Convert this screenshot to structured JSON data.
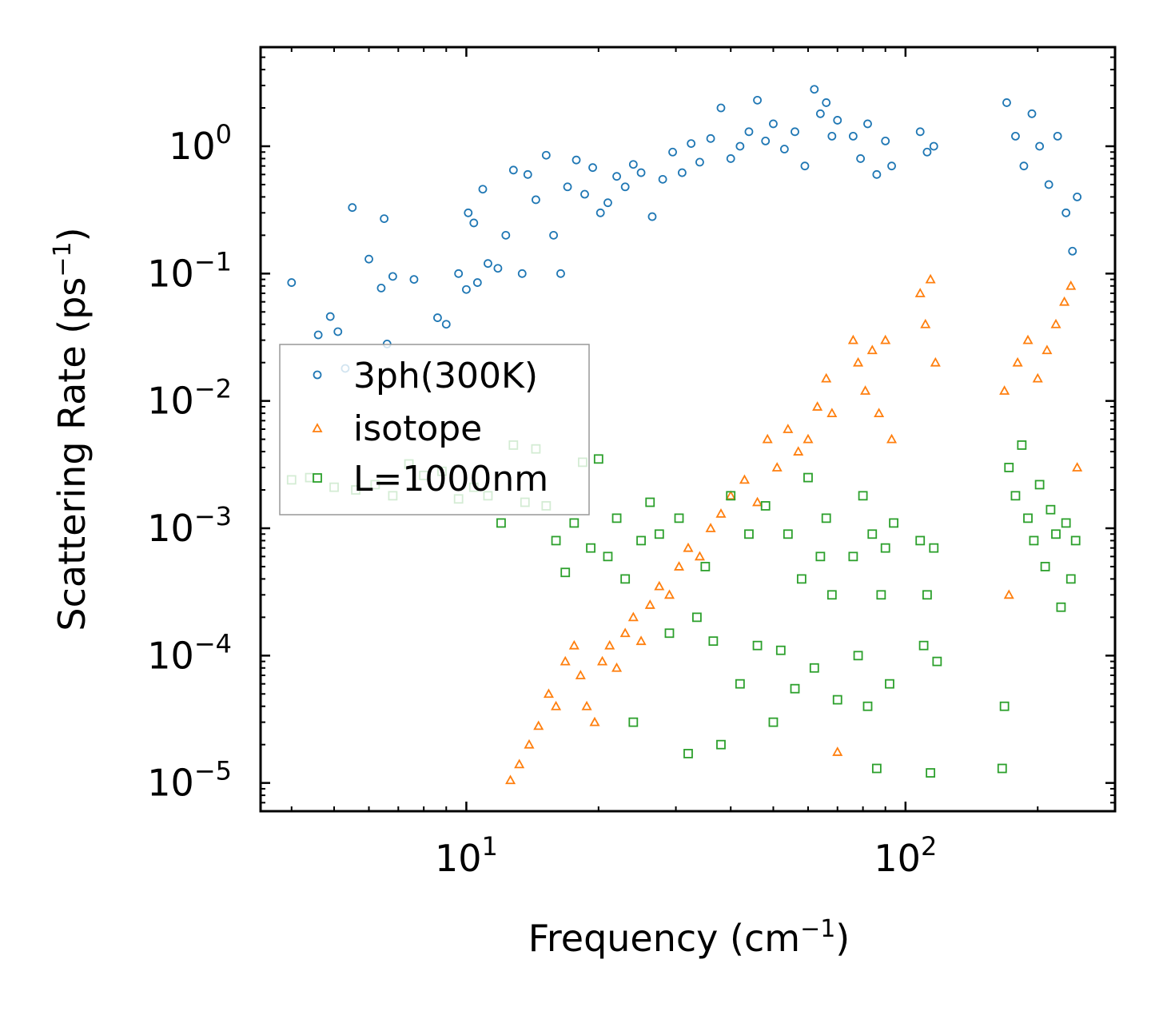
{
  "chart_data": {
    "type": "scatter",
    "xscale": "log",
    "yscale": "log",
    "xlabel": "Frequency (cm",
    "xlabel_sup": "−1",
    "xlabel_tail": ")",
    "ylabel": "Scattering Rate (ps",
    "ylabel_sup": "−1",
    "ylabel_tail": ")",
    "xlim": [
      3.4,
      300
    ],
    "ylim": [
      6e-06,
      6
    ],
    "xticks": [
      {
        "value": 10,
        "base": "10",
        "exp": "1"
      },
      {
        "value": 100,
        "base": "10",
        "exp": "2"
      }
    ],
    "yticks": [
      {
        "value": 1,
        "base": "10",
        "exp": "0"
      },
      {
        "value": 0.1,
        "base": "10",
        "exp": "−1"
      },
      {
        "value": 0.01,
        "base": "10",
        "exp": "−2"
      },
      {
        "value": 0.001,
        "base": "10",
        "exp": "−3"
      },
      {
        "value": 0.0001,
        "base": "10",
        "exp": "−4"
      },
      {
        "value": 1e-05,
        "base": "10",
        "exp": "−5"
      }
    ],
    "legend_position": "center-left",
    "series": [
      {
        "name": "3ph(300K)",
        "color": "#1f77b4",
        "marker": "circle",
        "points": [
          [
            4.0,
            0.085
          ],
          [
            4.6,
            0.033
          ],
          [
            4.9,
            0.046
          ],
          [
            5.1,
            0.035
          ],
          [
            5.3,
            0.018
          ],
          [
            5.5,
            0.33
          ],
          [
            6.0,
            0.13
          ],
          [
            6.4,
            0.077
          ],
          [
            6.5,
            0.27
          ],
          [
            6.6,
            0.028
          ],
          [
            6.8,
            0.095
          ],
          [
            7.6,
            0.09
          ],
          [
            8.6,
            0.045
          ],
          [
            9.0,
            0.04
          ],
          [
            9.6,
            0.1
          ],
          [
            10.0,
            0.075
          ],
          [
            10.1,
            0.3
          ],
          [
            10.4,
            0.25
          ],
          [
            10.6,
            0.085
          ],
          [
            10.9,
            0.46
          ],
          [
            11.2,
            0.12
          ],
          [
            11.8,
            0.11
          ],
          [
            12.3,
            0.2
          ],
          [
            12.8,
            0.65
          ],
          [
            13.4,
            0.1
          ],
          [
            13.8,
            0.6
          ],
          [
            14.4,
            0.38
          ],
          [
            15.2,
            0.85
          ],
          [
            15.8,
            0.2
          ],
          [
            16.4,
            0.1
          ],
          [
            17.0,
            0.48
          ],
          [
            17.8,
            0.78
          ],
          [
            18.6,
            0.42
          ],
          [
            19.4,
            0.68
          ],
          [
            20.2,
            0.3
          ],
          [
            21.0,
            0.36
          ],
          [
            22.0,
            0.58
          ],
          [
            23.0,
            0.48
          ],
          [
            24.0,
            0.72
          ],
          [
            25.0,
            0.62
          ],
          [
            26.5,
            0.28
          ],
          [
            28.0,
            0.55
          ],
          [
            29.5,
            0.9
          ],
          [
            31.0,
            0.62
          ],
          [
            32.5,
            1.05
          ],
          [
            34.0,
            0.75
          ],
          [
            36.0,
            1.15
          ],
          [
            38.0,
            2.0
          ],
          [
            40.0,
            0.8
          ],
          [
            42.0,
            1.0
          ],
          [
            44.0,
            1.3
          ],
          [
            46.0,
            2.3
          ],
          [
            48.0,
            1.1
          ],
          [
            50.0,
            1.5
          ],
          [
            53.0,
            0.95
          ],
          [
            56.0,
            1.3
          ],
          [
            59.0,
            0.7
          ],
          [
            62.0,
            2.8
          ],
          [
            64.0,
            1.8
          ],
          [
            66.0,
            2.2
          ],
          [
            68.0,
            1.2
          ],
          [
            70.0,
            1.6
          ],
          [
            76.0,
            1.2
          ],
          [
            79.0,
            0.8
          ],
          [
            82.0,
            1.5
          ],
          [
            86.0,
            0.6
          ],
          [
            90.0,
            1.1
          ],
          [
            93.0,
            0.7
          ],
          [
            108.0,
            1.3
          ],
          [
            112.0,
            0.9
          ],
          [
            116.0,
            1.0
          ],
          [
            170.0,
            2.2
          ],
          [
            178.0,
            1.2
          ],
          [
            186.0,
            0.7
          ],
          [
            194.0,
            1.8
          ],
          [
            202.0,
            1.0
          ],
          [
            212.0,
            0.5
          ],
          [
            222.0,
            1.2
          ],
          [
            232.0,
            0.3
          ],
          [
            240.0,
            0.15
          ],
          [
            246.0,
            0.4
          ]
        ]
      },
      {
        "name": "isotope",
        "color": "#ff7f0e",
        "marker": "triangle",
        "points": [
          [
            12.6,
            1.05e-05
          ],
          [
            13.2,
            1.4e-05
          ],
          [
            13.9,
            2e-05
          ],
          [
            14.6,
            2.8e-05
          ],
          [
            15.4,
            5e-05
          ],
          [
            16.0,
            4e-05
          ],
          [
            16.8,
            9e-05
          ],
          [
            17.6,
            0.00012
          ],
          [
            18.2,
            7e-05
          ],
          [
            18.8,
            4e-05
          ],
          [
            19.6,
            3e-05
          ],
          [
            20.4,
            9e-05
          ],
          [
            21.2,
            0.00012
          ],
          [
            22.0,
            8e-05
          ],
          [
            23.0,
            0.00015
          ],
          [
            24.0,
            0.0002
          ],
          [
            25.0,
            0.00013
          ],
          [
            26.2,
            0.00025
          ],
          [
            27.5,
            0.00035
          ],
          [
            29.0,
            0.0003
          ],
          [
            30.5,
            0.0005
          ],
          [
            32.0,
            0.0007
          ],
          [
            34.0,
            0.0006
          ],
          [
            36.0,
            0.001
          ],
          [
            38.0,
            0.0013
          ],
          [
            40.0,
            0.0018
          ],
          [
            43.0,
            0.0024
          ],
          [
            46.0,
            0.0016
          ],
          [
            48.5,
            0.005
          ],
          [
            51.0,
            0.003
          ],
          [
            54.0,
            0.006
          ],
          [
            57.0,
            0.004
          ],
          [
            60.0,
            0.005
          ],
          [
            63.0,
            0.009
          ],
          [
            66.0,
            0.015
          ],
          [
            68.0,
            0.008
          ],
          [
            70.0,
            1.75e-05
          ],
          [
            76.0,
            0.03
          ],
          [
            78.0,
            0.02
          ],
          [
            81.0,
            0.012
          ],
          [
            84.0,
            0.025
          ],
          [
            87.0,
            0.008
          ],
          [
            90.0,
            0.03
          ],
          [
            93.0,
            0.005
          ],
          [
            108.0,
            0.07
          ],
          [
            111.0,
            0.04
          ],
          [
            114.0,
            0.09
          ],
          [
            117.0,
            0.02
          ],
          [
            168.0,
            0.012
          ],
          [
            172.0,
            0.0003
          ],
          [
            180.0,
            0.02
          ],
          [
            190.0,
            0.03
          ],
          [
            200.0,
            0.015
          ],
          [
            210.0,
            0.025
          ],
          [
            220.0,
            0.04
          ],
          [
            230.0,
            0.06
          ],
          [
            238.0,
            0.08
          ],
          [
            246.0,
            0.003
          ]
        ]
      },
      {
        "name": "L=1000nm",
        "color": "#2ca02c",
        "marker": "square",
        "points": [
          [
            4.0,
            0.0024
          ],
          [
            4.4,
            0.0025
          ],
          [
            5.0,
            0.0021
          ],
          [
            5.6,
            0.002
          ],
          [
            6.2,
            0.0022
          ],
          [
            6.8,
            0.0018
          ],
          [
            7.4,
            0.0032
          ],
          [
            8.0,
            0.0026
          ],
          [
            8.8,
            0.0028
          ],
          [
            9.6,
            0.0017
          ],
          [
            10.4,
            0.0021
          ],
          [
            11.2,
            0.0018
          ],
          [
            12.0,
            0.0011
          ],
          [
            12.8,
            0.0045
          ],
          [
            13.6,
            0.0016
          ],
          [
            14.4,
            0.0042
          ],
          [
            15.2,
            0.0015
          ],
          [
            16.0,
            0.0008
          ],
          [
            16.8,
            0.00045
          ],
          [
            17.6,
            0.0011
          ],
          [
            18.4,
            0.0033
          ],
          [
            19.2,
            0.0007
          ],
          [
            20.0,
            0.0035
          ],
          [
            21.0,
            0.0006
          ],
          [
            22.0,
            0.0012
          ],
          [
            23.0,
            0.0004
          ],
          [
            24.0,
            3e-05
          ],
          [
            25.0,
            0.0008
          ],
          [
            26.2,
            0.0016
          ],
          [
            27.5,
            0.0009
          ],
          [
            29.0,
            0.00015
          ],
          [
            30.5,
            0.0012
          ],
          [
            32.0,
            1.7e-05
          ],
          [
            33.5,
            0.0002
          ],
          [
            35.0,
            0.0005
          ],
          [
            36.5,
            0.00013
          ],
          [
            38.0,
            2e-05
          ],
          [
            40.0,
            0.0018
          ],
          [
            42.0,
            6e-05
          ],
          [
            44.0,
            0.0009
          ],
          [
            46.0,
            0.00012
          ],
          [
            48.0,
            0.0015
          ],
          [
            50.0,
            3e-05
          ],
          [
            52.0,
            0.00011
          ],
          [
            54.0,
            0.0009
          ],
          [
            56.0,
            5.5e-05
          ],
          [
            58.0,
            0.0004
          ],
          [
            60.0,
            0.0025
          ],
          [
            62.0,
            8e-05
          ],
          [
            64.0,
            0.0006
          ],
          [
            66.0,
            0.0012
          ],
          [
            68.0,
            0.0003
          ],
          [
            70.0,
            4.5e-05
          ],
          [
            76.0,
            0.0006
          ],
          [
            78.0,
            0.0001
          ],
          [
            80.0,
            0.0018
          ],
          [
            82.0,
            4e-05
          ],
          [
            84.0,
            0.0009
          ],
          [
            86.0,
            1.3e-05
          ],
          [
            88.0,
            0.0003
          ],
          [
            90.0,
            0.0007
          ],
          [
            92.0,
            6e-05
          ],
          [
            94.0,
            0.0011
          ],
          [
            108.0,
            0.0008
          ],
          [
            110.0,
            0.00012
          ],
          [
            112.0,
            0.0003
          ],
          [
            114.0,
            1.2e-05
          ],
          [
            116.0,
            0.0007
          ],
          [
            118.0,
            9e-05
          ],
          [
            166.0,
            1.3e-05
          ],
          [
            168.0,
            4e-05
          ],
          [
            172.0,
            0.003
          ],
          [
            178.0,
            0.0018
          ],
          [
            184.0,
            0.0045
          ],
          [
            190.0,
            0.0012
          ],
          [
            196.0,
            0.0008
          ],
          [
            202.0,
            0.0022
          ],
          [
            208.0,
            0.0005
          ],
          [
            214.0,
            0.0014
          ],
          [
            220.0,
            0.0009
          ],
          [
            226.0,
            0.00024
          ],
          [
            232.0,
            0.0011
          ],
          [
            238.0,
            0.0004
          ],
          [
            244.0,
            0.0008
          ]
        ]
      }
    ]
  }
}
